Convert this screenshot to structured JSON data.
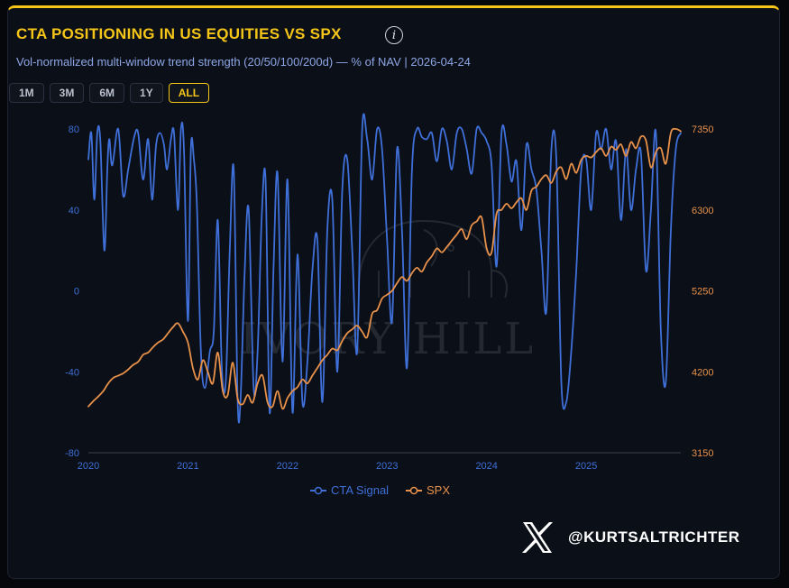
{
  "header": {
    "title": "CTA POSITIONING IN US EQUITIES VS SPX",
    "info_glyph": "i",
    "subtitle": "Vol-normalized multi-window trend strength (20/50/100/200d) — % of NAV | 2026-04-24"
  },
  "ranges": [
    "1M",
    "3M",
    "6M",
    "1Y",
    "ALL"
  ],
  "active_range": "ALL",
  "watermark": "IVORY HILL",
  "social": {
    "icon": "x-logo-icon",
    "handle": "@KURTSALTRICHTER"
  },
  "colors": {
    "cta": "#3f6fd8",
    "spx": "#e8914a",
    "accent": "#f5c518"
  },
  "chart_data": {
    "type": "line",
    "title": "CTA POSITIONING IN US EQUITIES VS SPX",
    "subtitle": "Vol-normalized multi-window trend strength (20/50/100/200d) — % of NAV | 2026-04-24",
    "x_ticks": [
      "2020",
      "2021",
      "2022",
      "2023",
      "2024",
      "2025"
    ],
    "x_range": [
      2020,
      2025.95
    ],
    "y_left": {
      "range": [
        -80,
        80
      ],
      "ticks": [
        "80",
        "40",
        "0",
        "-40",
        "-80"
      ]
    },
    "y_right": {
      "range": [
        3150,
        7350
      ],
      "ticks": [
        "7350",
        "6300",
        "5250",
        "4200",
        "3150"
      ]
    },
    "legend": {
      "position": "bottom-center",
      "entries": [
        "CTA Signal",
        "SPX"
      ]
    },
    "grid": false,
    "series": [
      {
        "name": "CTA Signal",
        "axis": "left",
        "x": [
          2020.0,
          2020.03,
          2020.06,
          2020.09,
          2020.12,
          2020.16,
          2020.19,
          2020.21,
          2020.24,
          2020.3,
          2020.35,
          2020.4,
          2020.46,
          2020.5,
          2020.55,
          2020.6,
          2020.64,
          2020.68,
          2020.72,
          2020.76,
          2020.79,
          2020.83,
          2020.86,
          2020.9,
          2020.93,
          2020.96,
          2021.0,
          2021.03,
          2021.06,
          2021.09,
          2021.13,
          2021.17,
          2021.22,
          2021.26,
          2021.3,
          2021.34,
          2021.38,
          2021.42,
          2021.46,
          2021.5,
          2021.53,
          2021.57,
          2021.61,
          2021.66,
          2021.7,
          2021.74,
          2021.78,
          2021.82,
          2021.86,
          2021.9,
          2021.95,
          2022.0,
          2022.05,
          2022.1,
          2022.15,
          2022.2,
          2022.25,
          2022.3,
          2022.35,
          2022.4,
          2022.45,
          2022.5,
          2022.55,
          2022.6,
          2022.65,
          2022.7,
          2022.75,
          2022.8,
          2022.85,
          2022.9,
          2022.95,
          2023.0,
          2023.05,
          2023.1,
          2023.15,
          2023.2,
          2023.25,
          2023.3,
          2023.35,
          2023.4,
          2023.45,
          2023.5,
          2023.55,
          2023.6,
          2023.65,
          2023.7,
          2023.75,
          2023.8,
          2023.85,
          2023.9,
          2023.95,
          2024.0,
          2024.05,
          2024.1,
          2024.15,
          2024.2,
          2024.25,
          2024.3,
          2024.35,
          2024.4,
          2024.45,
          2024.5,
          2024.55,
          2024.6,
          2024.65,
          2024.7,
          2024.75,
          2024.8,
          2024.85,
          2024.9,
          2024.95,
          2025.0,
          2025.05,
          2025.1,
          2025.15,
          2025.2,
          2025.25,
          2025.3,
          2025.35,
          2025.4,
          2025.45,
          2025.5,
          2025.55,
          2025.6,
          2025.65,
          2025.7,
          2025.75,
          2025.8,
          2025.85,
          2025.9,
          2025.95
        ],
        "y": [
          65,
          78,
          45,
          78,
          74,
          20,
          60,
          75,
          62,
          80,
          47,
          60,
          76,
          78,
          55,
          75,
          45,
          72,
          78,
          72,
          60,
          75,
          78,
          40,
          80,
          70,
          -15,
          70,
          65,
          42,
          -30,
          -48,
          -30,
          -20,
          35,
          -38,
          -45,
          20,
          60,
          -55,
          -52,
          10,
          40,
          -48,
          -30,
          35,
          55,
          -60,
          12,
          58,
          -35,
          55,
          -60,
          18,
          -55,
          -35,
          10,
          25,
          -55,
          30,
          45,
          -40,
          50,
          65,
          20,
          -30,
          80,
          75,
          55,
          80,
          70,
          25,
          -15,
          70,
          30,
          -38,
          60,
          80,
          76,
          75,
          78,
          64,
          80,
          74,
          60,
          78,
          80,
          70,
          58,
          80,
          78,
          74,
          62,
          12,
          78,
          72,
          54,
          64,
          30,
          72,
          60,
          50,
          20,
          -10,
          70,
          65,
          -45,
          -55,
          -30,
          10,
          60,
          65,
          40,
          78,
          70,
          80,
          60,
          74,
          35,
          70,
          40,
          60,
          68,
          10,
          40,
          78,
          -20,
          -45,
          30,
          70,
          78
        ]
      },
      {
        "name": "SPX",
        "axis": "right",
        "x": [
          2020.0,
          2020.05,
          2020.1,
          2020.15,
          2020.2,
          2020.25,
          2020.3,
          2020.35,
          2020.4,
          2020.45,
          2020.5,
          2020.55,
          2020.6,
          2020.65,
          2020.7,
          2020.75,
          2020.8,
          2020.85,
          2020.9,
          2020.95,
          2021.0,
          2021.05,
          2021.1,
          2021.15,
          2021.2,
          2021.25,
          2021.3,
          2021.35,
          2021.4,
          2021.45,
          2021.5,
          2021.55,
          2021.6,
          2021.65,
          2021.7,
          2021.75,
          2021.8,
          2021.85,
          2021.9,
          2021.95,
          2022.0,
          2022.05,
          2022.1,
          2022.15,
          2022.2,
          2022.25,
          2022.3,
          2022.35,
          2022.4,
          2022.45,
          2022.5,
          2022.55,
          2022.6,
          2022.65,
          2022.7,
          2022.75,
          2022.8,
          2022.85,
          2022.9,
          2022.95,
          2023.0,
          2023.05,
          2023.1,
          2023.15,
          2023.2,
          2023.25,
          2023.3,
          2023.35,
          2023.4,
          2023.45,
          2023.5,
          2023.55,
          2023.6,
          2023.65,
          2023.7,
          2023.75,
          2023.8,
          2023.85,
          2023.9,
          2023.95,
          2024.0,
          2024.05,
          2024.1,
          2024.15,
          2024.2,
          2024.25,
          2024.3,
          2024.35,
          2024.4,
          2024.45,
          2024.5,
          2024.55,
          2024.6,
          2024.65,
          2024.7,
          2024.75,
          2024.8,
          2024.85,
          2024.9,
          2024.95,
          2025.0,
          2025.05,
          2025.1,
          2025.15,
          2025.2,
          2025.25,
          2025.3,
          2025.35,
          2025.4,
          2025.45,
          2025.5,
          2025.55,
          2025.6,
          2025.65,
          2025.7,
          2025.75,
          2025.8,
          2025.85,
          2025.9,
          2025.95
        ],
        "y": [
          3750,
          3820,
          3880,
          3950,
          4050,
          4120,
          4150,
          4180,
          4230,
          4290,
          4330,
          4420,
          4450,
          4520,
          4580,
          4620,
          4700,
          4780,
          4830,
          4720,
          4580,
          4250,
          4100,
          4350,
          4200,
          4050,
          4450,
          3950,
          3900,
          4320,
          3850,
          3780,
          3900,
          3800,
          4050,
          4150,
          3800,
          3750,
          3950,
          3720,
          3860,
          3950,
          4000,
          4100,
          4050,
          4150,
          4250,
          4350,
          4420,
          4500,
          4480,
          4600,
          4700,
          4750,
          4800,
          4720,
          4650,
          4950,
          5000,
          5150,
          5200,
          5250,
          5350,
          5430,
          5380,
          5480,
          5550,
          5500,
          5620,
          5700,
          5800,
          5750,
          5820,
          5900,
          5980,
          6050,
          5920,
          6100,
          6150,
          6200,
          5800,
          5750,
          6250,
          6300,
          6380,
          6320,
          6400,
          6450,
          6300,
          6550,
          6600,
          6700,
          6750,
          6650,
          6800,
          6850,
          6700,
          6900,
          6780,
          6950,
          7000,
          6980,
          7050,
          7100,
          7000,
          7120,
          7080,
          7150,
          7000,
          7180,
          7100,
          7250,
          7200,
          6850,
          7050,
          7100,
          6900,
          7300,
          7350,
          7320
        ]
      }
    ]
  }
}
